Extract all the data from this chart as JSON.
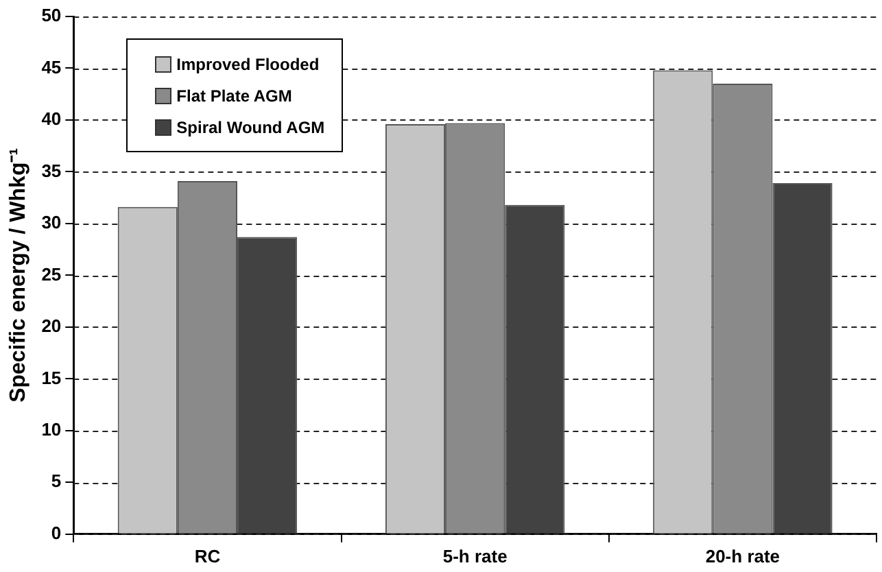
{
  "chart_data": {
    "type": "bar",
    "ylabel": "Specific energy / Whkg⁻¹",
    "categories": [
      "RC",
      "5-h rate",
      "20-h rate"
    ],
    "series": [
      {
        "name": "Improved Flooded",
        "color": "#c4c4c4",
        "values": [
          31.6,
          39.6,
          44.8
        ]
      },
      {
        "name": "Flat Plate AGM",
        "color": "#8a8a8a",
        "values": [
          34.1,
          39.7,
          43.5
        ]
      },
      {
        "name": "Spiral Wound AGM",
        "color": "#424242",
        "values": [
          28.7,
          31.8,
          33.9
        ]
      }
    ],
    "ylim": [
      0,
      50
    ],
    "yticks": [
      0,
      5,
      10,
      15,
      20,
      25,
      30,
      35,
      40,
      45,
      50
    ],
    "grid": "y",
    "legend": "top left"
  }
}
